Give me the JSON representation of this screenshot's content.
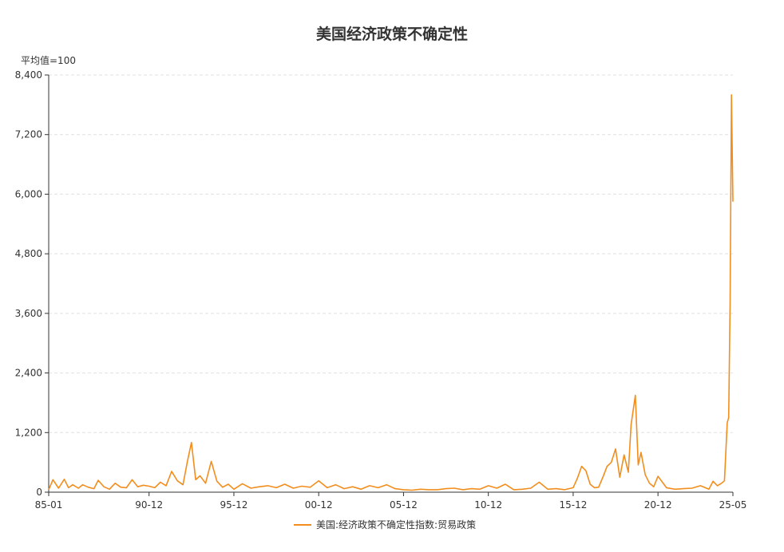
{
  "chart_data": {
    "type": "line",
    "title": "美国经济政策不确定性",
    "unit_label": "平均值=100",
    "ylim": [
      0,
      8400
    ],
    "yticks": [
      0,
      1200,
      2400,
      3600,
      4800,
      6000,
      7200,
      8400
    ],
    "ytick_labels": [
      "0",
      "1,200",
      "2,400",
      "3,600",
      "4,800",
      "6,000",
      "7,200",
      "8,400"
    ],
    "xticks": [
      "85-01",
      "90-12",
      "95-12",
      "00-12",
      "05-12",
      "10-12",
      "15-12",
      "20-12",
      "25-05"
    ],
    "grid": "horizontal dashed",
    "legend_position": "bottom-center",
    "colors": {
      "series": "#f28e1e",
      "grid": "#e0e0e0",
      "axis": "#333333"
    },
    "series": [
      {
        "name": "美国:经济政策不确定性指数:贸易政策",
        "x": [
          "1985-01",
          "1985-04",
          "1985-08",
          "1985-12",
          "1986-03",
          "1986-06",
          "1986-10",
          "1987-01",
          "1987-05",
          "1987-09",
          "1987-12",
          "1988-04",
          "1988-08",
          "1988-12",
          "1989-04",
          "1989-08",
          "1989-12",
          "1990-04",
          "1990-08",
          "1990-12",
          "1991-04",
          "1991-08",
          "1991-12",
          "1992-04",
          "1992-08",
          "1992-12",
          "1993-03",
          "1993-06",
          "1993-09",
          "1993-12",
          "1994-04",
          "1994-08",
          "1994-12",
          "1995-04",
          "1995-08",
          "1995-12",
          "1996-06",
          "1996-12",
          "1997-06",
          "1997-12",
          "1998-06",
          "1998-12",
          "1999-06",
          "1999-12",
          "2000-06",
          "2000-12",
          "2001-06",
          "2001-12",
          "2002-06",
          "2002-12",
          "2003-06",
          "2003-12",
          "2004-06",
          "2004-12",
          "2005-06",
          "2005-12",
          "2006-06",
          "2006-12",
          "2007-06",
          "2007-12",
          "2008-06",
          "2008-12",
          "2009-06",
          "2009-12",
          "2010-06",
          "2010-12",
          "2011-06",
          "2011-12",
          "2012-06",
          "2012-12",
          "2013-06",
          "2013-12",
          "2014-06",
          "2014-12",
          "2015-06",
          "2015-12",
          "2016-03",
          "2016-06",
          "2016-09",
          "2016-12",
          "2017-03",
          "2017-06",
          "2017-09",
          "2017-12",
          "2018-03",
          "2018-06",
          "2018-09",
          "2018-12",
          "2019-03",
          "2019-05",
          "2019-08",
          "2019-10",
          "2019-12",
          "2020-03",
          "2020-06",
          "2020-09",
          "2020-12",
          "2021-06",
          "2021-12",
          "2022-06",
          "2022-12",
          "2023-06",
          "2023-12",
          "2024-03",
          "2024-06",
          "2024-09",
          "2024-11",
          "2025-01",
          "2025-02",
          "2025-03",
          "2025-04",
          "2025-05"
        ],
        "values": [
          50,
          250,
          80,
          260,
          90,
          150,
          80,
          150,
          100,
          70,
          240,
          110,
          60,
          180,
          100,
          90,
          250,
          110,
          140,
          120,
          90,
          200,
          130,
          420,
          230,
          150,
          600,
          1000,
          250,
          330,
          180,
          620,
          220,
          100,
          160,
          60,
          170,
          80,
          110,
          130,
          90,
          160,
          80,
          120,
          100,
          230,
          90,
          150,
          70,
          110,
          60,
          130,
          90,
          150,
          70,
          50,
          40,
          60,
          50,
          50,
          70,
          80,
          50,
          70,
          60,
          130,
          80,
          160,
          50,
          60,
          80,
          200,
          60,
          70,
          50,
          90,
          280,
          520,
          430,
          160,
          90,
          100,
          300,
          520,
          600,
          870,
          300,
          750,
          400,
          1360,
          1950,
          550,
          800,
          350,
          180,
          110,
          320,
          90,
          60,
          70,
          80,
          130,
          60,
          220,
          130,
          180,
          230,
          1400,
          1500,
          3800,
          8000,
          5850
        ]
      }
    ]
  }
}
